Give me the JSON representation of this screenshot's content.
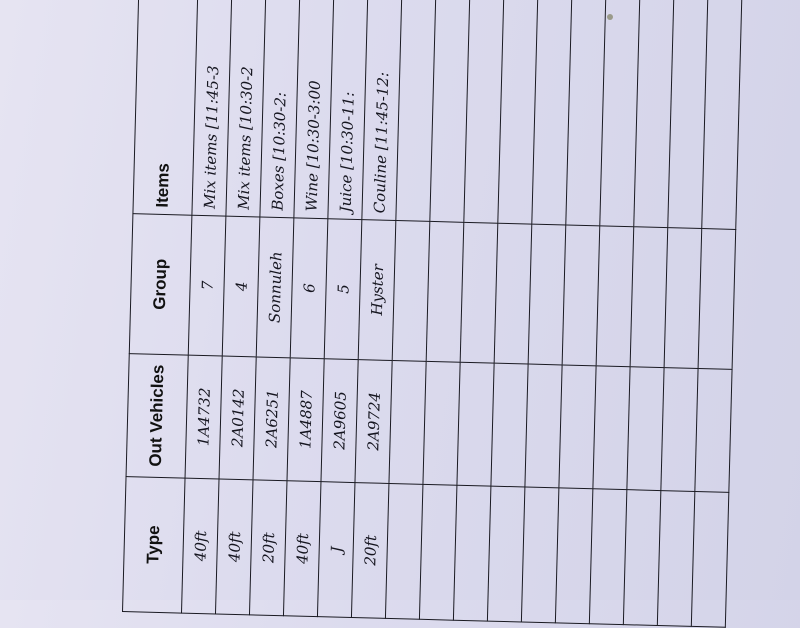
{
  "table": {
    "headers": [
      "Type",
      "Out Vehicles",
      "Group",
      "Items"
    ],
    "rows": [
      [
        "40ft",
        "1A4732",
        "7",
        "Mix items [11:45-3"
      ],
      [
        "40ft",
        "2A0142",
        "4",
        "Mix items [10:30-2"
      ],
      [
        "20ft",
        "2A6251",
        "Sonnuleh",
        "Boxes [10:30-2:"
      ],
      [
        "40ft",
        "1A4887",
        "6",
        "Wine [10:30-3:00"
      ],
      [
        "J",
        "2A9605",
        "5",
        "Juice [10:30-11:"
      ],
      [
        "20ft",
        "2A9724",
        "Hyster",
        "Couline [11:45-12:"
      ],
      [
        "",
        "",
        "",
        ""
      ],
      [
        "",
        "",
        "",
        ""
      ],
      [
        "",
        "",
        "",
        ""
      ],
      [
        "",
        "",
        "",
        ""
      ],
      [
        "",
        "",
        "",
        ""
      ],
      [
        "",
        "",
        "",
        ""
      ],
      [
        "",
        "",
        "",
        ""
      ],
      [
        "",
        "",
        "",
        ""
      ],
      [
        "",
        "",
        "",
        ""
      ],
      [
        "",
        "",
        "",
        ""
      ]
    ]
  }
}
